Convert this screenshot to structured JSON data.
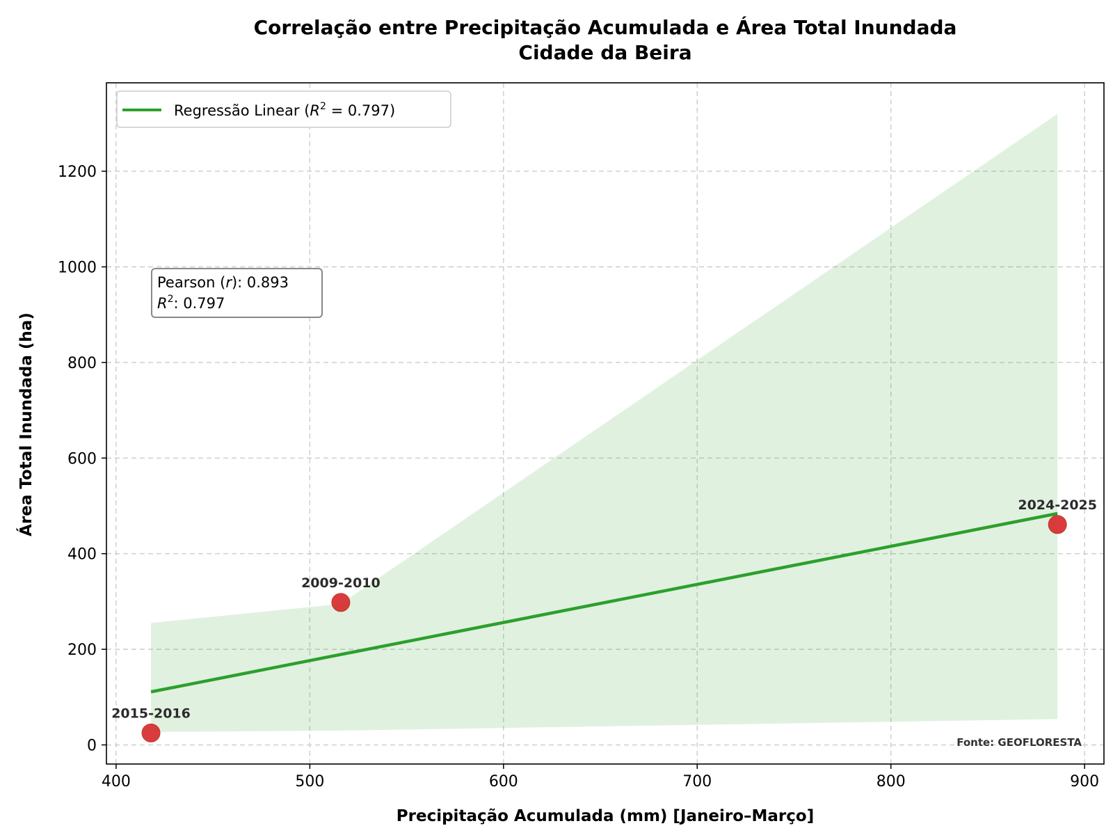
{
  "chart_data": {
    "type": "scatter",
    "title": "Correlação entre Precipitação Acumulada e Área Total Inundada",
    "subtitle": "Cidade da Beira",
    "xlabel": "Precipitação Acumulada (mm) [Janeiro–Março]",
    "ylabel": "Área Total Inundada (ha)",
    "xlim": [
      395,
      910
    ],
    "ylim": [
      -40,
      1385
    ],
    "xticks": [
      400,
      500,
      600,
      700,
      800,
      900
    ],
    "yticks": [
      0,
      200,
      400,
      600,
      800,
      1000,
      1200
    ],
    "grid": true,
    "points": [
      {
        "label": "2015-2016",
        "x": 418,
        "y": 25
      },
      {
        "label": "2009-2010",
        "x": 516,
        "y": 298
      },
      {
        "label": "2024-2025",
        "x": 886,
        "y": 461
      }
    ],
    "regression": {
      "x": [
        418,
        886
      ],
      "y": [
        111,
        484
      ],
      "color": "#2ca02c"
    },
    "confidence_band": {
      "x": [
        418,
        516,
        886
      ],
      "upper": [
        255,
        295,
        1320
      ],
      "lower": [
        27,
        30,
        54
      ],
      "color": "#2ca02c"
    },
    "point_color": "#d62728",
    "legend": {
      "position": "top-left",
      "label_prefix": "Regressão Linear (",
      "label_var": "R",
      "label_sup": "2",
      "label_suffix": " = 0.797)"
    },
    "stats": {
      "pearson_prefix": "Pearson (",
      "pearson_var": "r",
      "pearson_suffix": "): 0.893",
      "r2_var": "R",
      "r2_sup": "2",
      "r2_suffix": ": 0.797"
    },
    "source": "Fonte: GEOFLORESTA"
  }
}
